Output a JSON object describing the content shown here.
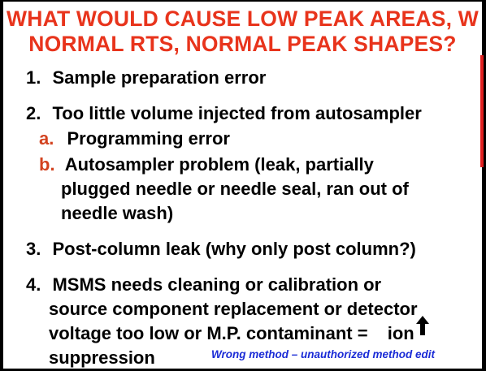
{
  "slide": {
    "title_line1": "WHAT WOULD CAUSE LOW PEAK AREAS, W",
    "title_line2": "NORMAL RTS, NORMAL PEAK SHAPES?",
    "items": [
      {
        "number": "1.",
        "lines": [
          "Sample preparation error"
        ]
      },
      {
        "number": "2.",
        "lines": [
          "Too little volume injected from autosampler"
        ],
        "subitems": [
          {
            "letter": "a.",
            "lines": [
              "Programming error"
            ]
          },
          {
            "letter": "b.",
            "lines": [
              "Autosampler problem (leak, partially",
              "plugged needle or needle seal, ran out of",
              "needle wash)"
            ]
          }
        ]
      },
      {
        "number": "3.",
        "lines": [
          "Post-column leak (why only post column?)"
        ]
      },
      {
        "number": "4.",
        "lines": [
          "MSMS needs cleaning or calibration or",
          "source component replacement or detector",
          "voltage too low or M.P. contaminant = ",
          "ion",
          "suppression"
        ]
      }
    ],
    "annotation": "Wrong method – unauthorized method edit",
    "arrow_icon": "up-arrow-icon",
    "colors": {
      "title": "#e8341c",
      "sub_letter": "#d3421f",
      "annotation": "#1a2bd6",
      "accent_bar": "#e02020"
    }
  }
}
